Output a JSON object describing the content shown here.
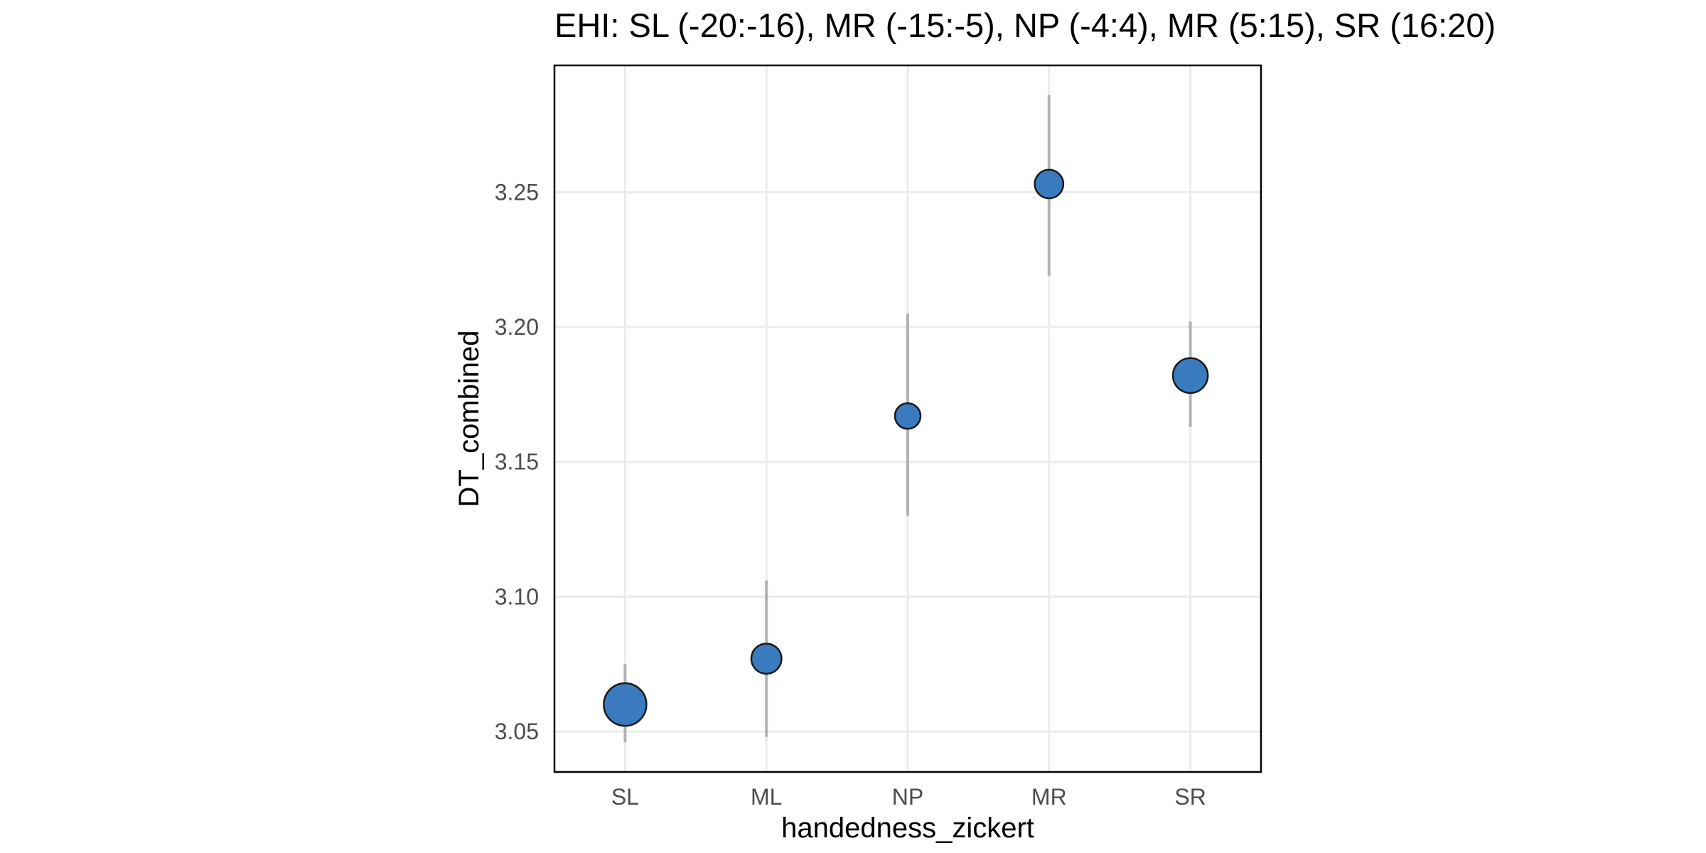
{
  "chart_data": {
    "type": "scatter",
    "title": "EHI: SL (-20:-16), MR (-15:-5), NP (-4:4), MR (5:15), SR (16:20)",
    "xlabel": "handedness_zickert",
    "ylabel": "DT_combined",
    "categories": [
      "SL",
      "ML",
      "NP",
      "MR",
      "SR"
    ],
    "ylim": [
      3.035,
      3.297
    ],
    "yticks": [
      3.05,
      3.1,
      3.15,
      3.2,
      3.25
    ],
    "ytick_labels": [
      "3.05",
      "3.10",
      "3.15",
      "3.20",
      "3.25"
    ],
    "grid": true,
    "legend": "none",
    "point_color": "#3a7bbf",
    "errorbar_color": "#b3b3b3",
    "series": [
      {
        "values": [
          3.06,
          3.077,
          3.167,
          3.253,
          3.182
        ],
        "lower": [
          3.046,
          3.048,
          3.13,
          3.219,
          3.163
        ],
        "upper": [
          3.075,
          3.106,
          3.205,
          3.286,
          3.202
        ],
        "relative_size": [
          1.0,
          0.5,
          0.36,
          0.45,
          0.67
        ]
      }
    ]
  }
}
